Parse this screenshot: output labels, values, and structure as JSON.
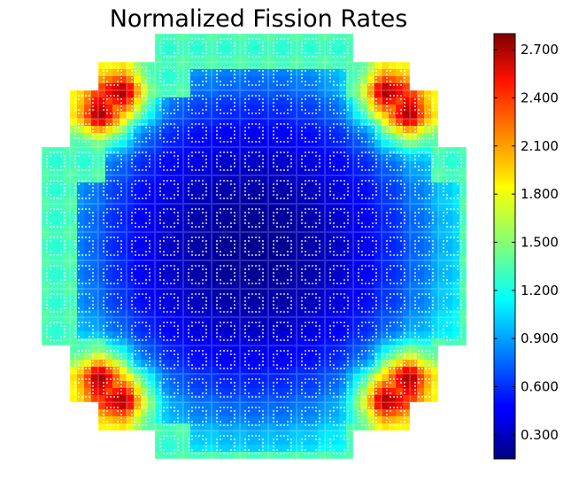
{
  "chart_data": {
    "type": "heatmap",
    "title": "Normalized Fission Rates",
    "xlabel": "",
    "ylabel": "",
    "colormap": "jet",
    "colorbar": {
      "range": [
        0.15,
        2.8
      ],
      "ticks": [
        0.3,
        0.6,
        0.9,
        1.2,
        1.5,
        1.8,
        2.1,
        2.4,
        2.7
      ],
      "tick_labels": [
        "0.300",
        "0.600",
        "0.900",
        "1.200",
        "1.500",
        "1.800",
        "2.100",
        "2.400",
        "2.700"
      ]
    },
    "assembly_grid": {
      "size": 15,
      "row_extents": [
        [
          4,
          10
        ],
        [
          2,
          12
        ],
        [
          1,
          13
        ],
        [
          1,
          13
        ],
        [
          0,
          14
        ],
        [
          0,
          14
        ],
        [
          0,
          14
        ],
        [
          0,
          14
        ],
        [
          0,
          14
        ],
        [
          0,
          14
        ],
        [
          0,
          14
        ],
        [
          1,
          13
        ],
        [
          1,
          13
        ],
        [
          2,
          12
        ],
        [
          4,
          10
        ]
      ]
    },
    "peak_regions": [
      {
        "location": "upper-left",
        "value": 2.7
      },
      {
        "location": "upper-right",
        "value": 2.7
      },
      {
        "location": "lower-left",
        "value": 2.7
      },
      {
        "location": "lower-right",
        "value": 2.7
      }
    ],
    "center_value": 0.2,
    "guide_tube_markers": "white dots"
  }
}
